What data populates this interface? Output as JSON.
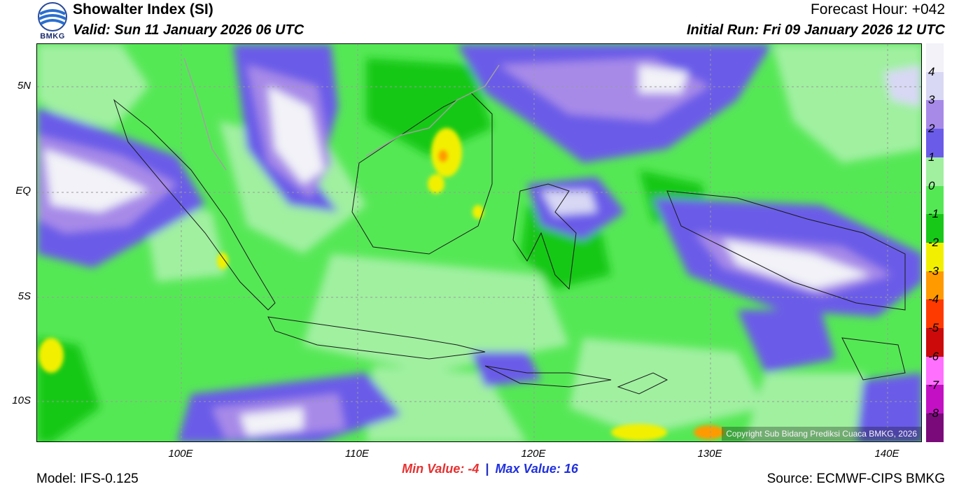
{
  "header": {
    "title": "Showalter Index (SI)",
    "valid": "Valid: Sun 11 January 2026 06 UTC",
    "forecast_hour": "Forecast Hour: +042",
    "initial_run": "Initial Run: Fri 09 January 2026 12 UTC"
  },
  "logo": {
    "text": "BMKG"
  },
  "map": {
    "lat_labels": [
      "5N",
      "EQ",
      "5S",
      "10S"
    ],
    "lon_labels": [
      "100E",
      "110E",
      "120E",
      "130E",
      "140E"
    ],
    "copyright": "Copyright Sub Bidang Prediksi Cuaca BMKG, 2026"
  },
  "colorbar": {
    "labels": [
      "4",
      "3",
      "2",
      "1",
      "0",
      "-1",
      "-2",
      "-3",
      "-4",
      "-5",
      "-6",
      "-7",
      "-8"
    ],
    "colors": [
      "#f2f2f8",
      "#d8d8f4",
      "#a78ae8",
      "#6a5ce8",
      "#a0f0a0",
      "#55e855",
      "#18c818",
      "#f2f000",
      "#ff9a00",
      "#ff3a00",
      "#cc0a0a",
      "#ff70ff",
      "#c410c4",
      "#7a0a7a"
    ]
  },
  "footer": {
    "min_label": "Min Value:  -4",
    "separator": "|",
    "max_label": "Max Value:  16",
    "model": "Model: IFS-0.125",
    "source": "Source: ECMWF-CIPS BMKG"
  }
}
